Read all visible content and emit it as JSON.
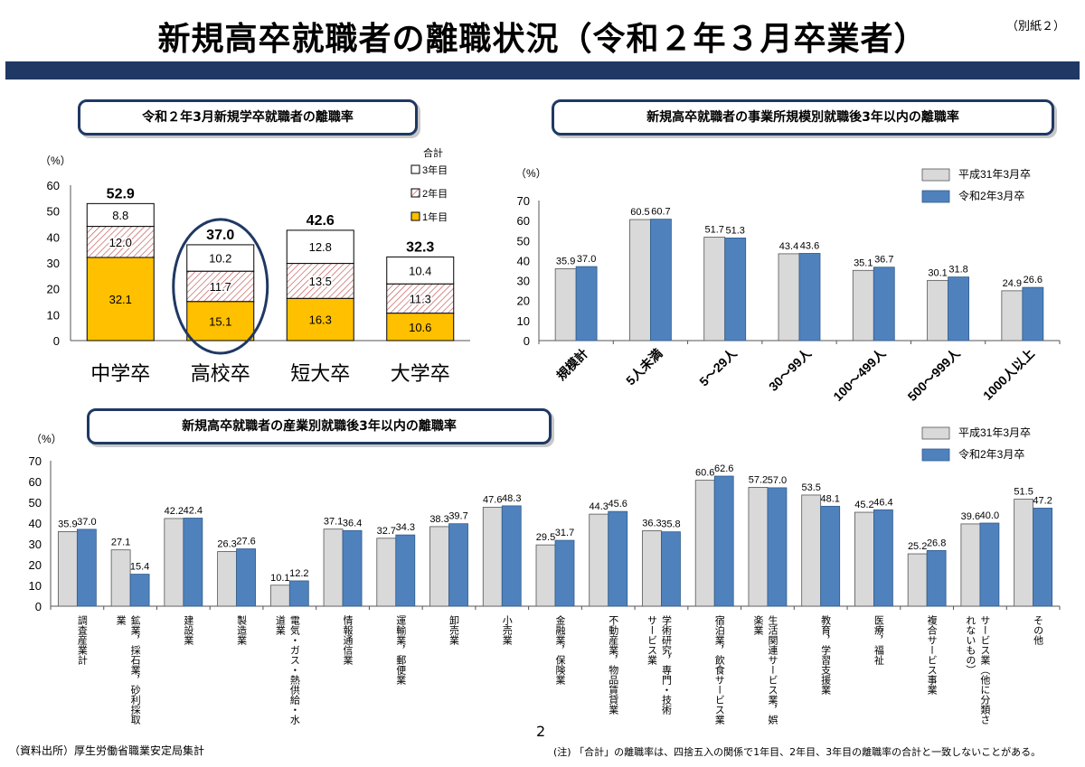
{
  "page": {
    "title": "新規高卒就職者の離職状況（令和２年３月卒業者）",
    "attachment": "（別紙２）",
    "source": "（資料出所）厚生労働省職業安定局集計",
    "page_number": "2",
    "footnote": "(注) 「合計」の離職率は、四捨五入の関係で1年目、2年目、3年目の離職率の合計と一致しないことがある。"
  },
  "colors": {
    "navy": "#1f3864",
    "year1": "#ffc000",
    "year3": "#ffffff",
    "series_prev": "#d9d9d9",
    "series_curr": "#4f81bd"
  },
  "chart_data": [
    {
      "type": "bar",
      "stacked": true,
      "title": "令和２年3月新規学卒就職者の離職率",
      "ylabel": "（%）",
      "ylim": [
        0,
        60
      ],
      "yticks": [
        0,
        10,
        20,
        30,
        40,
        50,
        60
      ],
      "categories": [
        "中学卒",
        "高校卒",
        "短大卒",
        "大学卒"
      ],
      "legend_title": "合計",
      "series": [
        {
          "name": "1年目",
          "values": [
            32.1,
            15.1,
            16.3,
            10.6
          ]
        },
        {
          "name": "2年目",
          "values": [
            12.0,
            11.7,
            13.5,
            11.3
          ]
        },
        {
          "name": "3年目",
          "values": [
            8.8,
            10.2,
            12.8,
            10.4
          ]
        }
      ],
      "totals": [
        52.9,
        37.0,
        42.6,
        32.3
      ],
      "highlight_category": "高校卒"
    },
    {
      "type": "bar",
      "title": "新規高卒就職者の事業所規模別就職後3年以内の離職率",
      "ylabel": "（%）",
      "ylim": [
        0,
        70
      ],
      "yticks": [
        0,
        10,
        20,
        30,
        40,
        50,
        60,
        70
      ],
      "categories": [
        "規模計",
        "5人未満",
        "5～29人",
        "30～99人",
        "100～499人",
        "500～999人",
        "1000人以上"
      ],
      "series": [
        {
          "name": "平成31年3月卒",
          "values": [
            35.9,
            60.5,
            51.7,
            43.4,
            35.1,
            30.1,
            24.9
          ]
        },
        {
          "name": "令和2年3月卒",
          "values": [
            37.0,
            60.7,
            51.3,
            43.6,
            36.7,
            31.8,
            26.6
          ]
        }
      ],
      "legend": "top-right"
    },
    {
      "type": "bar",
      "title": "新規高卒就職者の産業別就職後3年以内の離職率",
      "ylabel": "（%）",
      "ylim": [
        0,
        70
      ],
      "yticks": [
        0,
        10,
        20,
        30,
        40,
        50,
        60,
        70
      ],
      "categories": [
        "調査産業計",
        "鉱業，採石業，砂利採取業",
        "建設業",
        "製造業",
        "電気・ガス・熱供給・水道業",
        "情報通信業",
        "運輸業，郵便業",
        "卸売業",
        "小売業",
        "金融業，保険業",
        "不動産業，物品賃貸業",
        "学術研究，専門・技術サービス業",
        "宿泊業，飲食サービス業",
        "生活関連サービス業，娯楽業",
        "教育，学習支援業",
        "医療，福祉",
        "複合サービス事業",
        "サービス業（他に分類されないもの）",
        "その他"
      ],
      "category_lines": [
        [
          "調査産業計"
        ],
        [
          "鉱業，採石業，砂利採取",
          "業"
        ],
        [
          "建設業"
        ],
        [
          "製造業"
        ],
        [
          "電気・ガス・熱供給・水",
          "道業"
        ],
        [
          "情報通信業"
        ],
        [
          "運輸業，郵便業"
        ],
        [
          "卸売業"
        ],
        [
          "小売業"
        ],
        [
          "金融業，保険業"
        ],
        [
          "不動産業，物品賃貸業"
        ],
        [
          "学術研究，専門・技術",
          "サービス業"
        ],
        [
          "宿泊業，飲食サービス業"
        ],
        [
          "生活関連サービス業，娯",
          "楽業"
        ],
        [
          "教育，学習支援業"
        ],
        [
          "医療，福祉"
        ],
        [
          "複合サービス事業"
        ],
        [
          "サービス業（他に分類さ",
          "れないもの）"
        ],
        [
          "その他"
        ]
      ],
      "series": [
        {
          "name": "平成31年3月卒",
          "values": [
            35.9,
            27.1,
            42.2,
            26.3,
            10.1,
            37.1,
            32.7,
            38.3,
            47.6,
            29.5,
            44.3,
            36.3,
            60.6,
            57.2,
            53.5,
            45.2,
            25.2,
            39.6,
            51.5
          ]
        },
        {
          "name": "令和2年3月卒",
          "values": [
            37.0,
            15.4,
            42.4,
            27.6,
            12.2,
            36.4,
            34.3,
            39.7,
            48.3,
            31.7,
            45.6,
            35.8,
            62.6,
            57.0,
            48.1,
            46.4,
            26.8,
            40.0,
            47.2
          ]
        }
      ],
      "legend": "top-right"
    }
  ]
}
